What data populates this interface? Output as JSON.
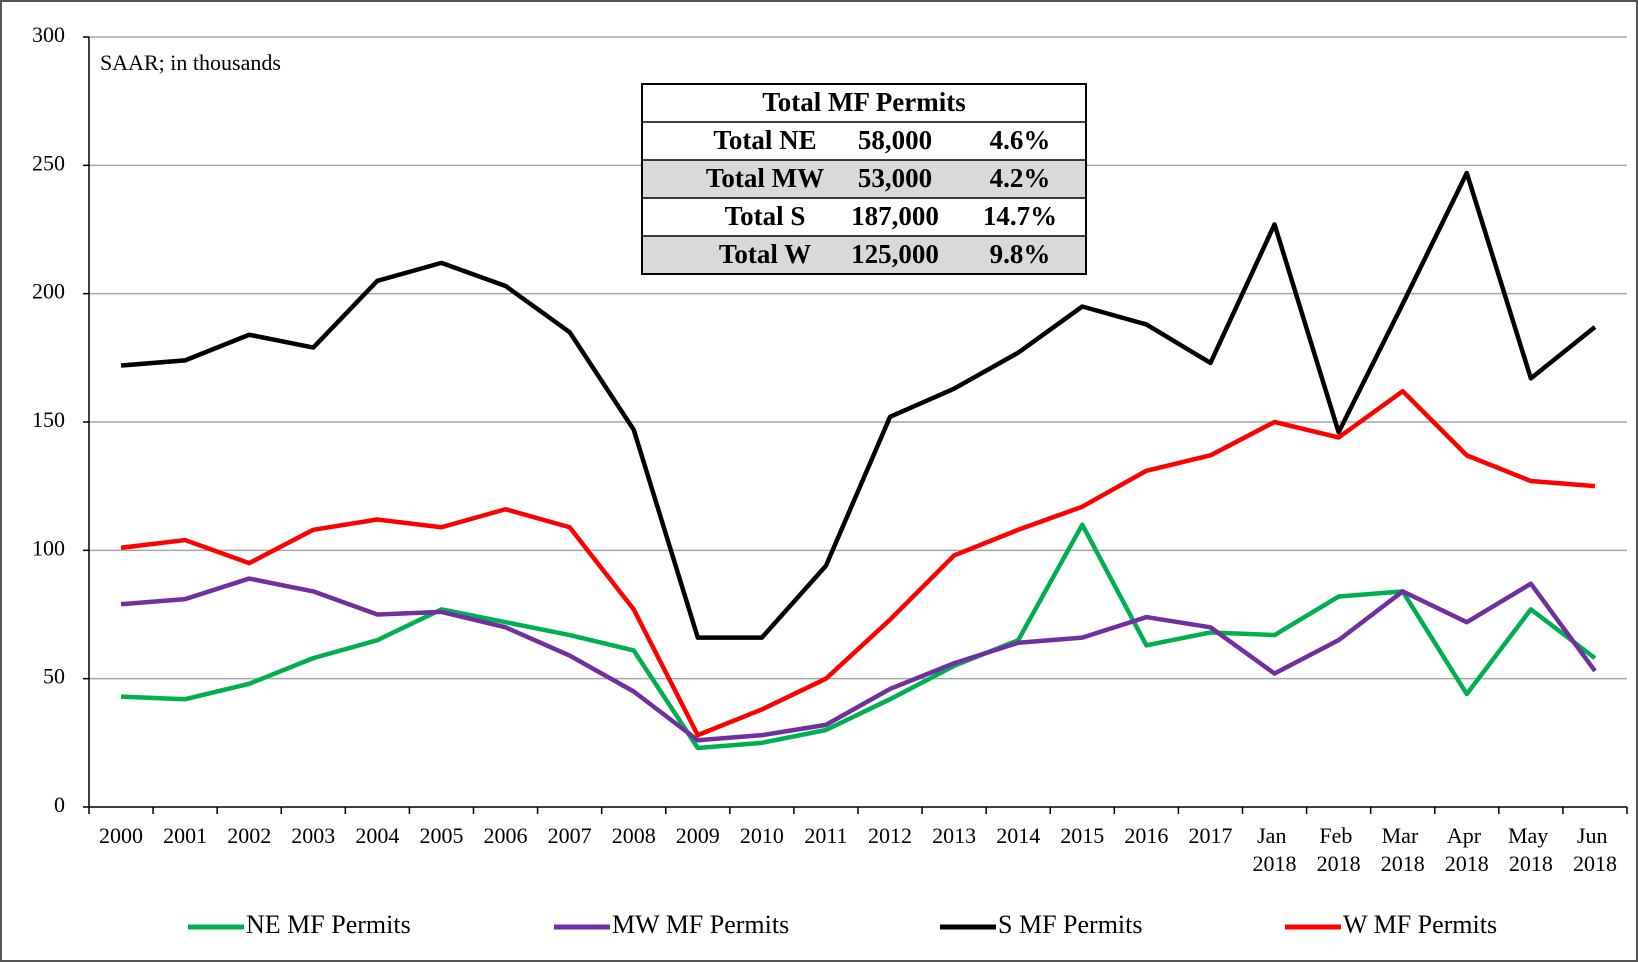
{
  "chart_data": {
    "type": "line",
    "annotation": "SAAR; in thousands",
    "categories": [
      "2000",
      "2001",
      "2002",
      "2003",
      "2004",
      "2005",
      "2006",
      "2007",
      "2008",
      "2009",
      "2010",
      "2011",
      "2012",
      "2013",
      "2014",
      "2015",
      "2016",
      "2017",
      "Jan 2018",
      "Feb 2018",
      "Mar 2018",
      "Apr 2018",
      "May 2018",
      "Jun 2018"
    ],
    "series": [
      {
        "name": "NE MF Permits",
        "color": "#00b050",
        "values": [
          43,
          42,
          48,
          58,
          65,
          77,
          72,
          67,
          61,
          23,
          25,
          30,
          42,
          55,
          65,
          110,
          63,
          68,
          67,
          82,
          84,
          44,
          77,
          58
        ]
      },
      {
        "name": "MW MF Permits",
        "color": "#7030a0",
        "values": [
          79,
          81,
          89,
          84,
          75,
          76,
          70,
          59,
          45,
          26,
          28,
          32,
          46,
          56,
          64,
          66,
          74,
          70,
          52,
          65,
          84,
          72,
          87,
          53
        ]
      },
      {
        "name": "S MF Permits",
        "color": "#000000",
        "values": [
          172,
          174,
          184,
          179,
          205,
          212,
          203,
          185,
          147,
          66,
          66,
          94,
          152,
          163,
          177,
          195,
          188,
          173,
          227,
          146,
          196,
          247,
          167,
          187
        ]
      },
      {
        "name": "W MF Permits",
        "color": "#ff0000",
        "values": [
          101,
          104,
          95,
          108,
          112,
          109,
          116,
          109,
          77,
          28,
          38,
          50,
          73,
          98,
          108,
          117,
          131,
          137,
          150,
          144,
          162,
          137,
          127,
          125
        ]
      }
    ],
    "ylim": [
      0,
      300
    ],
    "yticks": [
      0,
      50,
      100,
      150,
      200,
      250,
      300
    ],
    "grid": true,
    "legend": "bottom",
    "table": {
      "title": "Total MF Permits",
      "rows": [
        [
          "Total NE",
          "58,000",
          "4.6%"
        ],
        [
          "Total MW",
          "53,000",
          "4.2%"
        ],
        [
          "Total S",
          "187,000",
          "14.7%"
        ],
        [
          "Total W",
          "125,000",
          "9.8%"
        ]
      ]
    }
  }
}
